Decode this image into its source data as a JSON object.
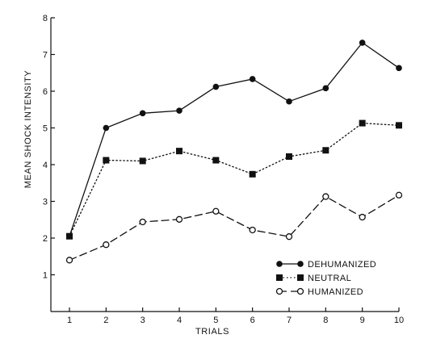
{
  "chart_data": {
    "type": "line",
    "xlabel": "TRIALS",
    "ylabel": "MEAN SHOCK INTENSITY",
    "x": [
      1,
      2,
      3,
      4,
      5,
      6,
      7,
      8,
      9,
      10
    ],
    "xlim": [
      0.5,
      10.2
    ],
    "ylim": [
      0,
      8
    ],
    "yticks": [
      1,
      2,
      3,
      4,
      5,
      6,
      7,
      8
    ],
    "grid": false,
    "legend_position": "bottom-right",
    "series": [
      {
        "name": "DEHUMANIZED",
        "values": [
          2.05,
          5.0,
          5.4,
          5.47,
          6.12,
          6.33,
          5.72,
          6.08,
          7.32,
          6.63
        ],
        "line_style": "solid",
        "marker": "filled-circle",
        "color": "#111111"
      },
      {
        "name": "NEUTRAL",
        "values": [
          2.05,
          4.12,
          4.1,
          4.37,
          4.12,
          3.74,
          4.22,
          4.39,
          5.13,
          5.07
        ],
        "line_style": "dotted",
        "marker": "filled-square",
        "color": "#111111"
      },
      {
        "name": "HUMANIZED",
        "values": [
          1.4,
          1.82,
          2.44,
          2.51,
          2.73,
          2.22,
          2.04,
          3.13,
          2.57,
          3.17
        ],
        "line_style": "dashed",
        "marker": "open-circle",
        "color": "#111111"
      }
    ]
  }
}
